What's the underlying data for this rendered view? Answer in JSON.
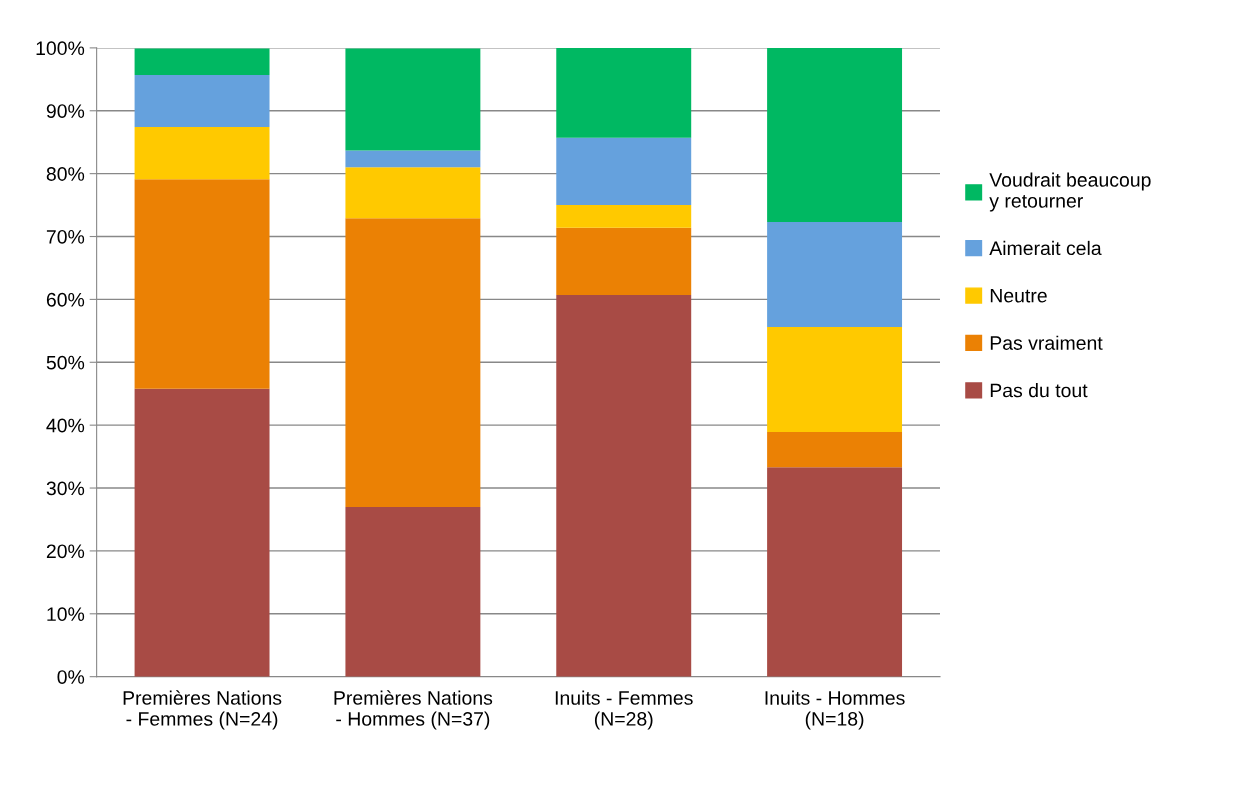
{
  "chart_data": {
    "type": "bar",
    "stacked": true,
    "categories": [
      "Premières Nations\n- Femmes (N=24)",
      "Premières Nations\n- Hommes (N=37)",
      "Inuits - Femmes\n(N=28)",
      "Inuits - Hommes\n(N=18)"
    ],
    "series": [
      {
        "name": "Pas du tout",
        "color": "#a84b45",
        "values": [
          45.8,
          27.0,
          60.7,
          33.3
        ]
      },
      {
        "name": "Pas vraiment",
        "color": "#eb8104",
        "values": [
          33.3,
          45.9,
          10.7,
          5.6
        ]
      },
      {
        "name": "Neutre",
        "color": "#ffc900",
        "values": [
          8.3,
          8.1,
          3.6,
          16.7
        ]
      },
      {
        "name": "Aimerait cela",
        "color": "#65a1dd",
        "values": [
          8.3,
          2.7,
          10.7,
          16.7
        ]
      },
      {
        "name": "Voudrait beaucoup\ny retourner",
        "color": "#00b862",
        "values": [
          4.2,
          16.2,
          14.3,
          27.8
        ]
      }
    ],
    "ylim": [
      0,
      100
    ],
    "yticks": [
      {
        "value": 0,
        "label": "0%"
      },
      {
        "value": 10,
        "label": "10%"
      },
      {
        "value": 20,
        "label": "20%"
      },
      {
        "value": 30,
        "label": "30%"
      },
      {
        "value": 40,
        "label": "40%"
      },
      {
        "value": 50,
        "label": "50%"
      },
      {
        "value": 60,
        "label": "60%"
      },
      {
        "value": 70,
        "label": "70%"
      },
      {
        "value": 80,
        "label": "80%"
      },
      {
        "value": 90,
        "label": "90%"
      },
      {
        "value": 100,
        "label": "100%"
      }
    ],
    "grid": "y",
    "legend": "right"
  }
}
